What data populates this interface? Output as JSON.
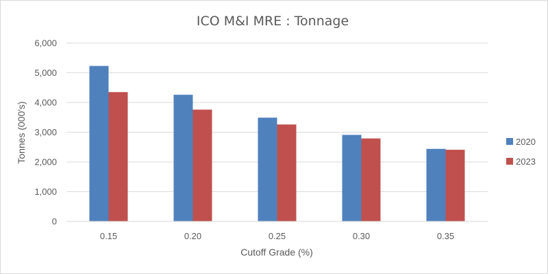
{
  "chart_data": {
    "type": "bar",
    "title": "ICO M&I MRE : Tonnage",
    "xlabel": "Cutoff Grade (%)",
    "ylabel": "Tonnes (000's)",
    "categories": [
      "0.15",
      "0.20",
      "0.25",
      "0.30",
      "0.35"
    ],
    "series": [
      {
        "name": "2020",
        "values": [
          5230,
          4260,
          3490,
          2910,
          2440
        ],
        "color": "#4f81bd"
      },
      {
        "name": "2023",
        "values": [
          4350,
          3760,
          3260,
          2790,
          2410
        ],
        "color": "#c0504d"
      }
    ],
    "ylim": [
      0,
      6000
    ],
    "yticks": [
      0,
      1000,
      2000,
      3000,
      4000,
      5000,
      6000
    ],
    "ytick_labels": [
      "0",
      "1,000",
      "2,000",
      "3,000",
      "4,000",
      "5,000",
      "6,000"
    ],
    "grid": true,
    "legend_position": "right"
  }
}
